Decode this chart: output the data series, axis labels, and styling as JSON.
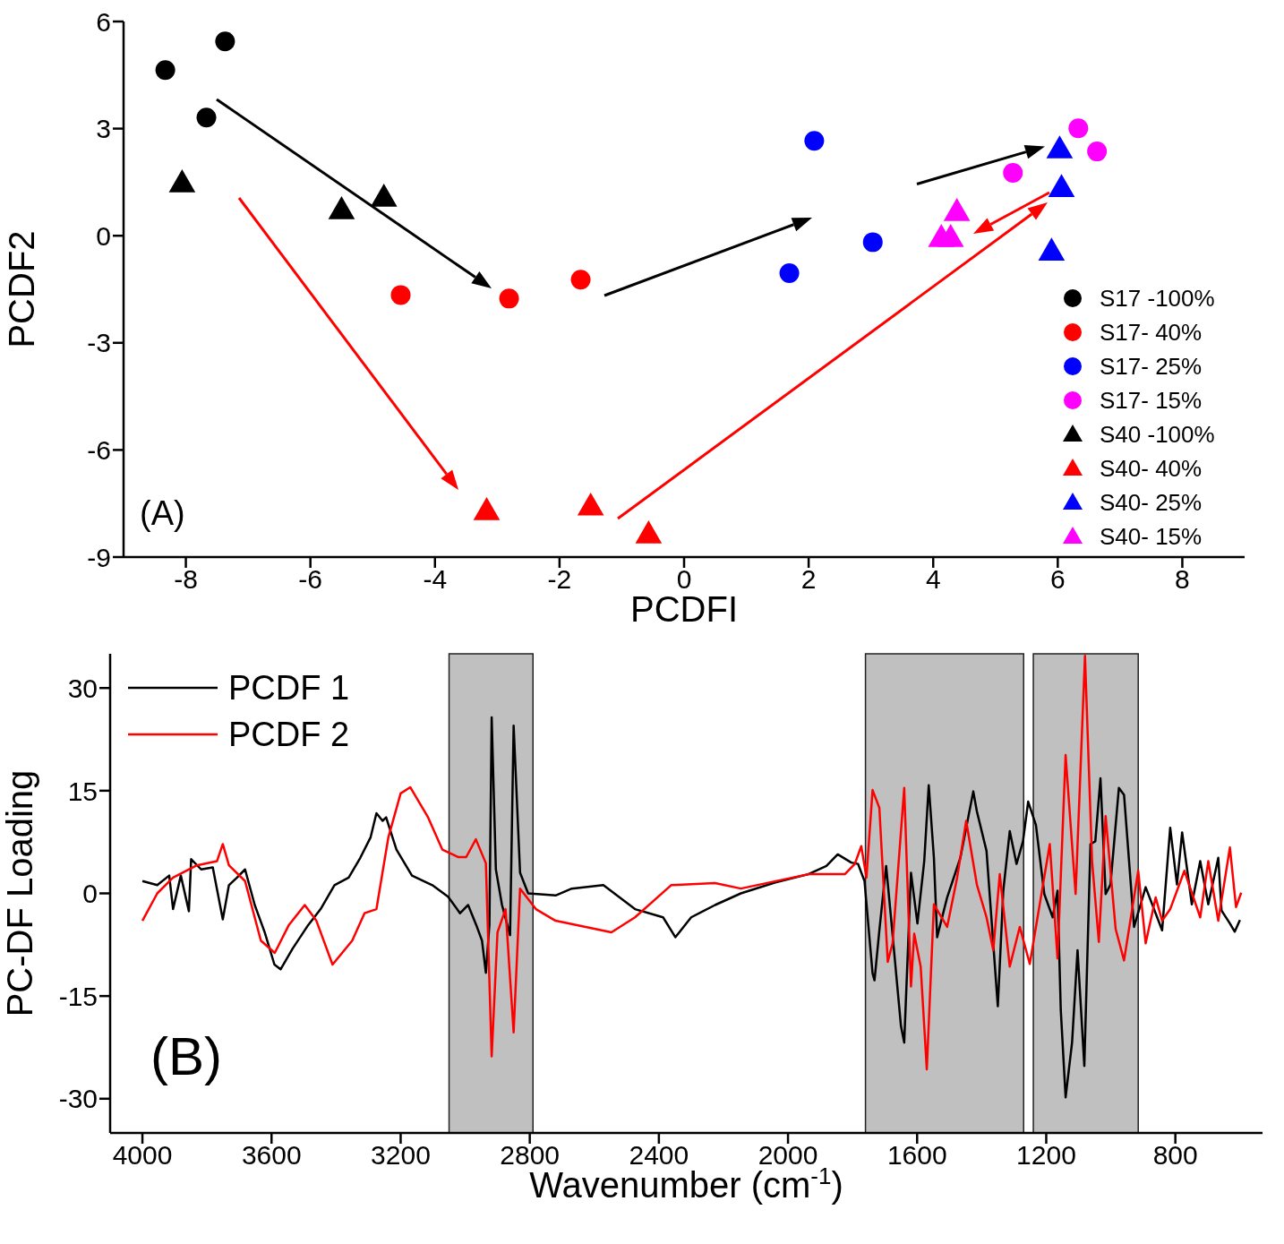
{
  "chart_data": [
    {
      "type": "scatter",
      "xlabel": "PCDFI",
      "ylabel": "PCDF2",
      "annotations": [
        "(A)"
      ],
      "xlim": [
        -9,
        9
      ],
      "xticks": [
        -8,
        -6,
        -4,
        -2,
        0,
        2,
        4,
        6,
        8
      ],
      "ylim": [
        -9,
        6
      ],
      "yticks": [
        -9,
        -6,
        -3,
        0,
        3,
        6
      ],
      "legend": "bottom right",
      "series": [
        {
          "name": "S17 -100%",
          "color": "#000000",
          "marker": "circle",
          "x": [
            -8.33,
            -7.37,
            -7.67
          ],
          "values": [
            4.64,
            5.44,
            3.31
          ]
        },
        {
          "name": "S17- 40%",
          "color": "#ff0000",
          "marker": "circle",
          "x": [
            -4.55,
            -2.81,
            -1.66
          ],
          "values": [
            -1.66,
            -1.76,
            -1.23
          ]
        },
        {
          "name": "S17- 25%",
          "color": "#0000ff",
          "marker": "circle",
          "x": [
            2.09,
            3.03,
            1.69
          ],
          "values": [
            2.66,
            -0.18,
            -1.05
          ]
        },
        {
          "name": "S17- 15%",
          "color": "#ff00ff",
          "marker": "circle",
          "x": [
            6.33,
            6.63,
            5.28
          ],
          "values": [
            3.01,
            2.36,
            1.76
          ]
        },
        {
          "name": "S40 -100%",
          "color": "#000000",
          "marker": "triangle",
          "x": [
            -8.06,
            -5.5,
            -4.82
          ],
          "values": [
            1.43,
            0.68,
            1.03
          ]
        },
        {
          "name": "S40- 40%",
          "color": "#ff0000",
          "marker": "triangle",
          "x": [
            -3.17,
            -1.5,
            -0.57
          ],
          "values": [
            -7.75,
            -7.62,
            -8.4
          ]
        },
        {
          "name": "S40- 25%",
          "color": "#0000ff",
          "marker": "triangle",
          "x": [
            6.03,
            6.06,
            5.9
          ],
          "values": [
            2.38,
            1.3,
            -0.48
          ]
        },
        {
          "name": "S40- 15%",
          "color": "#ff00ff",
          "marker": "triangle",
          "x": [
            4.38,
            4.13,
            4.28
          ],
          "values": [
            0.63,
            -0.1,
            -0.1
          ]
        }
      ]
    },
    {
      "type": "line",
      "xlabel": "Wavenumber (cm$^{-1}$)",
      "ylabel": "PC-DF Loading",
      "annotations": [
        "(B)"
      ],
      "xlim": [
        4100,
        530
      ],
      "xticks": [
        4000,
        3600,
        3200,
        2800,
        2400,
        2000,
        1600,
        1200,
        800
      ],
      "ylim": [
        -35,
        35
      ],
      "yticks": [
        -30,
        -15,
        0,
        15,
        30
      ],
      "legend": "top left",
      "line_style": "solid",
      "marker": "none",
      "bands": [
        {
          "axis": "x",
          "from": 3050,
          "to": 2790,
          "color": "#c0c0c0"
        },
        {
          "axis": "x",
          "from": 1760,
          "to": 1270,
          "color": "#c0c0c0"
        },
        {
          "axis": "x",
          "from": 1240,
          "to": 915,
          "color": "#c0c0c0"
        }
      ],
      "series": [
        {
          "name": "PCDF 1",
          "color": "#000000",
          "x": [
            4000,
            3954,
            3917,
            3905,
            3881,
            3856,
            3849,
            3818,
            3782,
            3751,
            3732,
            3707,
            3682,
            3652,
            3621,
            3591,
            3572,
            3535,
            3486,
            3448,
            3405,
            3361,
            3325,
            3293,
            3275,
            3256,
            3245,
            3213,
            3165,
            3102,
            3053,
            3016,
            2991,
            2966,
            2948,
            2936,
            2925,
            2918,
            2905,
            2886,
            2861,
            2850,
            2830,
            2805,
            2720,
            2670,
            2572,
            2474,
            2387,
            2349,
            2300,
            2226,
            2146,
            2039,
            1937,
            1881,
            1846,
            1804,
            1783,
            1763,
            1738,
            1732,
            1717,
            1696,
            1681,
            1650,
            1640,
            1619,
            1599,
            1578,
            1564,
            1548,
            1538,
            1507,
            1466,
            1426,
            1415,
            1385,
            1350,
            1333,
            1313,
            1292,
            1272,
            1256,
            1232,
            1206,
            1180,
            1165,
            1155,
            1140,
            1120,
            1103,
            1082,
            1063,
            1048,
            1032,
            1016,
            1001,
            975,
            959,
            928,
            892,
            841,
            816,
            795,
            779,
            749,
            723,
            698,
            667,
            657,
            631,
            616,
            600
          ],
          "values": [
            1.8,
            1.2,
            2.6,
            -2.3,
            2.6,
            -2.6,
            5.0,
            3.5,
            3.8,
            -3.8,
            1.2,
            2.3,
            3.5,
            -1.7,
            -5.7,
            -10.4,
            -11.1,
            -8.1,
            -4.6,
            -2.3,
            1.2,
            2.3,
            5.2,
            8.2,
            11.7,
            10.6,
            11.1,
            6.4,
            2.6,
            1.2,
            -0.5,
            -2.9,
            -1.7,
            -4.6,
            -6.9,
            -11.6,
            -4.6,
            25.7,
            3.5,
            -1.7,
            -6.1,
            24.5,
            3.0,
            0,
            -0.3,
            0.7,
            1.2,
            -2.3,
            -3.5,
            -6.4,
            -3.5,
            -1.7,
            0,
            1.6,
            2.8,
            4.0,
            5.7,
            4.5,
            4.3,
            1.8,
            -11.7,
            -12.7,
            -5.4,
            4.0,
            -3.5,
            -19.4,
            -21.8,
            3.0,
            -4.4,
            4.7,
            15.8,
            5.2,
            -6.4,
            -0.6,
            5.2,
            14.9,
            12.0,
            6.2,
            -16.5,
            0.4,
            9.1,
            4.3,
            7.6,
            13.4,
            10.0,
            -0.1,
            -3.5,
            0.4,
            -17.0,
            -29.8,
            -21.8,
            -8.3,
            -25.2,
            7.2,
            7.6,
            16.8,
            -0.1,
            1.3,
            15.4,
            14.4,
            -4.9,
            0.9,
            -5.4,
            9.6,
            1.3,
            8.9,
            -1.6,
            4.7,
            -1.6,
            5.2,
            -2.5,
            -4.4,
            -5.6,
            -3.9
          ]
        },
        {
          "name": "PCDF 2",
          "color": "#ff0000",
          "x": [
            4000,
            3954,
            3905,
            3831,
            3769,
            3751,
            3732,
            3682,
            3633,
            3590,
            3546,
            3497,
            3461,
            3411,
            3350,
            3312,
            3275,
            3238,
            3200,
            3170,
            3115,
            3071,
            3022,
            2997,
            2967,
            2936,
            2918,
            2900,
            2875,
            2850,
            2830,
            2781,
            2720,
            2547,
            2474,
            2362,
            2226,
            2146,
            1937,
            1824,
            1793,
            1773,
            1757,
            1738,
            1717,
            1691,
            1676,
            1640,
            1619,
            1609,
            1589,
            1570,
            1548,
            1507,
            1476,
            1448,
            1415,
            1385,
            1364,
            1344,
            1313,
            1282,
            1251,
            1189,
            1165,
            1140,
            1109,
            1080,
            1058,
            1037,
            1016,
            985,
            959,
            915,
            892,
            861,
            841,
            816,
            772,
            723,
            698,
            667,
            631,
            612,
            596
          ],
          "values": [
            -4.0,
            0,
            2.3,
            4.1,
            4.7,
            7.2,
            4.1,
            1.8,
            -6.9,
            -8.7,
            -4.6,
            -1.7,
            -4.0,
            -10.4,
            -6.9,
            -2.9,
            -2.3,
            8.2,
            14.6,
            15.5,
            11.1,
            6.4,
            5.3,
            5.3,
            7.9,
            4.4,
            -23.8,
            -5.7,
            -2.3,
            -20.3,
            0.7,
            -2.3,
            -4.0,
            -5.7,
            -3.5,
            1.2,
            1.5,
            0.7,
            2.8,
            2.8,
            4.3,
            6.9,
            2.3,
            15.1,
            12.5,
            -10.0,
            -7.3,
            15.4,
            -13.6,
            -5.9,
            -10.7,
            -25.7,
            -1.6,
            -4.9,
            2.3,
            10.6,
            1.3,
            -3.5,
            -8.3,
            2.8,
            -10.7,
            -4.9,
            -10.3,
            7.2,
            -9.5,
            20.2,
            -0.1,
            34.7,
            4.7,
            -7.1,
            11.3,
            -5.2,
            -9.8,
            3.3,
            -7.3,
            -0.6,
            -4.0,
            -2.3,
            3.3,
            -3.5,
            4.7,
            -4.0,
            6.7,
            -2.0,
            0.1
          ]
        }
      ]
    }
  ]
}
